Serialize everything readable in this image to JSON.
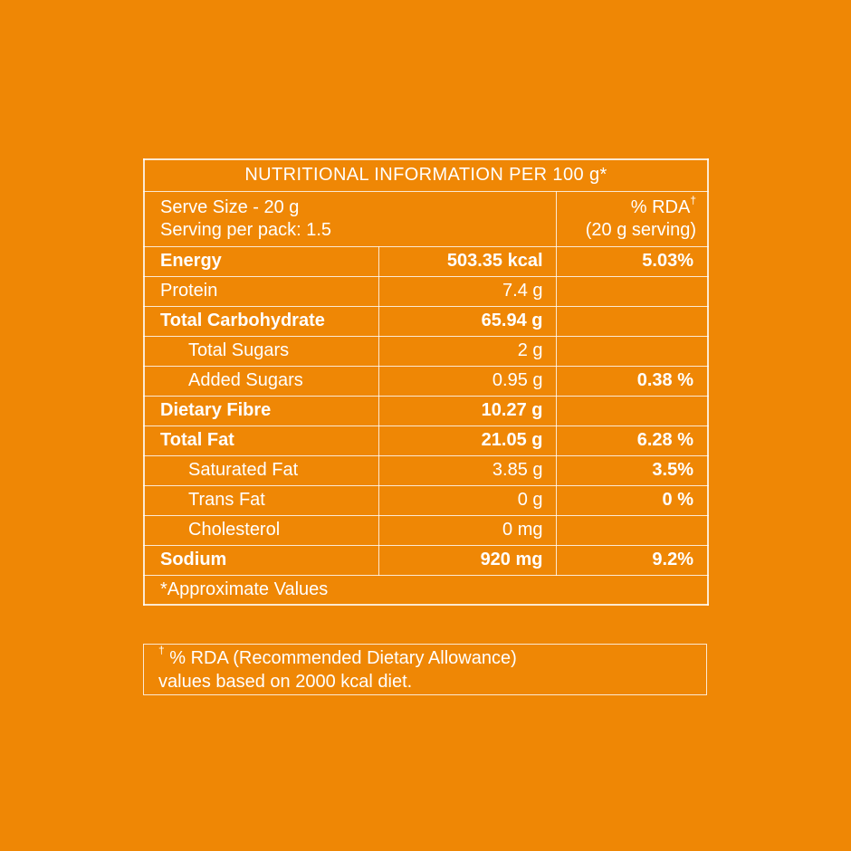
{
  "palette": {
    "background": "#EF8705",
    "text": "#FFFFFF",
    "border": "rgba(255,255,255,0.82)"
  },
  "table": {
    "title": "NUTRITIONAL INFORMATION PER 100 g*",
    "serve": {
      "line1": "Serve Size - 20 g",
      "line2": "Serving per pack: 1.5",
      "rda_label": "% RDA",
      "rda_sup": "†",
      "rda_sub": "(20 g serving)"
    },
    "rows": [
      {
        "label": "Energy",
        "value": "503.35 kcal",
        "rda": "5.03%",
        "bold": true,
        "indent": false
      },
      {
        "label": "Protein",
        "value": "7.4 g",
        "rda": "",
        "bold": false,
        "indent": false
      },
      {
        "label": "Total Carbohydrate",
        "value": "65.94 g",
        "rda": "",
        "bold": true,
        "indent": false
      },
      {
        "label": "Total Sugars",
        "value": "2 g",
        "rda": "",
        "bold": false,
        "indent": true
      },
      {
        "label": "Added Sugars",
        "value": "0.95 g",
        "rda": "0.38 %",
        "bold": false,
        "indent": true
      },
      {
        "label": "Dietary Fibre",
        "value": "10.27 g",
        "rda": "",
        "bold": true,
        "indent": false
      },
      {
        "label": "Total Fat",
        "value": "21.05 g",
        "rda": "6.28 %",
        "bold": true,
        "indent": false
      },
      {
        "label": "Saturated Fat",
        "value": "3.85 g",
        "rda": "3.5%",
        "bold": false,
        "indent": true
      },
      {
        "label": "Trans Fat",
        "value": "0 g",
        "rda": "0 %",
        "bold": false,
        "indent": true
      },
      {
        "label": "Cholesterol",
        "value": "0 mg",
        "rda": "",
        "bold": false,
        "indent": true
      },
      {
        "label": "Sodium",
        "value": "920 mg",
        "rda": "9.2%",
        "bold": true,
        "indent": false
      }
    ],
    "approx_note": "*Approximate Values"
  },
  "footnote": {
    "sup": "†",
    "line1": " % RDA (Recommended Dietary Allowance)",
    "line2": "values based on 2000 kcal diet."
  }
}
